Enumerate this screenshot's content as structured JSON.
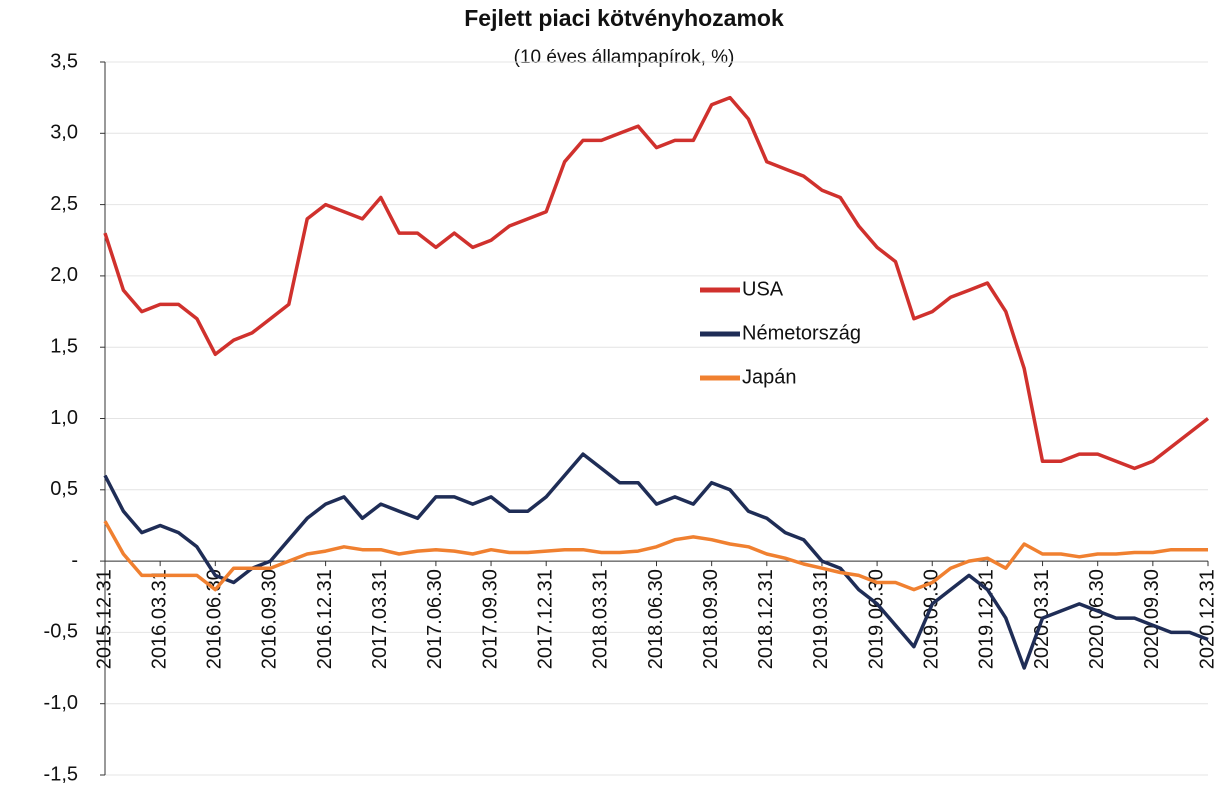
{
  "chart_data": {
    "type": "line",
    "title": "Fejlett piaci kötvényhozamok",
    "subtitle": "(10 éves állampapírok, %)",
    "categories": [
      "2015.12.31",
      null,
      null,
      "2016.03.31",
      null,
      null,
      "2016.06.30",
      null,
      null,
      "2016.09.30",
      null,
      null,
      "2016.12.31",
      null,
      null,
      "2017.03.31",
      null,
      null,
      "2017.06.30",
      null,
      null,
      "2017.09.30",
      null,
      null,
      "2017.12.31",
      null,
      null,
      "2018.03.31",
      null,
      null,
      "2018.06.30",
      null,
      null,
      "2018.09.30",
      null,
      null,
      "2018.12.31",
      null,
      null,
      "2019.03.31",
      null,
      null,
      "2019.06.30",
      null,
      null,
      "2019.09.30",
      null,
      null,
      "2019.12.31",
      null,
      null,
      "2020.03.31",
      null,
      null,
      "2020.06.30",
      null,
      null,
      "2020.09.30",
      null,
      null,
      "2020.12.31"
    ],
    "series": [
      {
        "name": "USA",
        "color": "#d0312d",
        "values": [
          2.3,
          1.9,
          1.75,
          1.8,
          1.8,
          1.7,
          1.45,
          1.55,
          1.6,
          1.7,
          1.8,
          2.4,
          2.5,
          2.45,
          2.4,
          2.55,
          2.3,
          2.3,
          2.2,
          2.3,
          2.2,
          2.25,
          2.35,
          2.4,
          2.45,
          2.8,
          2.95,
          2.95,
          3.0,
          3.05,
          2.9,
          2.95,
          2.95,
          3.2,
          3.25,
          3.1,
          2.8,
          2.75,
          2.7,
          2.6,
          2.55,
          2.35,
          2.2,
          2.1,
          1.7,
          1.75,
          1.85,
          1.9,
          1.95,
          1.75,
          1.35,
          0.7,
          0.7,
          0.75,
          0.75,
          0.7,
          0.65,
          0.7,
          0.8,
          0.9,
          1.0
        ]
      },
      {
        "name": "Németország",
        "color": "#1f2d56",
        "values": [
          0.6,
          0.35,
          0.2,
          0.25,
          0.2,
          0.1,
          -0.1,
          -0.15,
          -0.05,
          0.0,
          0.15,
          0.3,
          0.4,
          0.45,
          0.3,
          0.4,
          0.35,
          0.3,
          0.45,
          0.45,
          0.4,
          0.45,
          0.35,
          0.35,
          0.45,
          0.6,
          0.75,
          0.65,
          0.55,
          0.55,
          0.4,
          0.45,
          0.4,
          0.55,
          0.5,
          0.35,
          0.3,
          0.2,
          0.15,
          0.0,
          -0.05,
          -0.2,
          -0.3,
          -0.45,
          -0.6,
          -0.3,
          -0.2,
          -0.1,
          -0.2,
          -0.4,
          -0.75,
          -0.4,
          -0.35,
          -0.3,
          -0.35,
          -0.4,
          -0.4,
          -0.45,
          -0.5,
          -0.5,
          -0.55
        ]
      },
      {
        "name": "Japán",
        "color": "#f08030",
        "values": [
          0.28,
          0.05,
          -0.1,
          -0.1,
          -0.1,
          -0.1,
          -0.2,
          -0.05,
          -0.05,
          -0.05,
          0.0,
          0.05,
          0.07,
          0.1,
          0.08,
          0.08,
          0.05,
          0.07,
          0.08,
          0.07,
          0.05,
          0.08,
          0.06,
          0.06,
          0.07,
          0.08,
          0.08,
          0.06,
          0.06,
          0.07,
          0.1,
          0.15,
          0.17,
          0.15,
          0.12,
          0.1,
          0.05,
          0.02,
          -0.02,
          -0.05,
          -0.08,
          -0.1,
          -0.15,
          -0.15,
          -0.2,
          -0.15,
          -0.05,
          0.0,
          0.02,
          -0.05,
          0.12,
          0.05,
          0.05,
          0.03,
          0.05,
          0.05,
          0.06,
          0.06,
          0.08,
          0.08,
          0.08
        ]
      }
    ],
    "ylim": [
      -1.5,
      3.5
    ],
    "yticks": [
      {
        "value": -1.5,
        "label": "-1,5"
      },
      {
        "value": -1,
        "label": "-1,0"
      },
      {
        "value": -0.5,
        "label": "-0,5"
      },
      {
        "value": 0,
        "label": "-"
      },
      {
        "value": 0.5,
        "label": "0,5"
      },
      {
        "value": 1,
        "label": "1,0"
      },
      {
        "value": 1.5,
        "label": "1,5"
      },
      {
        "value": 2,
        "label": "2,0"
      },
      {
        "value": 2.5,
        "label": "2,5"
      },
      {
        "value": 3,
        "label": "3,0"
      },
      {
        "value": 3.5,
        "label": "3,5"
      }
    ],
    "grid": true,
    "legend": "center-right"
  }
}
